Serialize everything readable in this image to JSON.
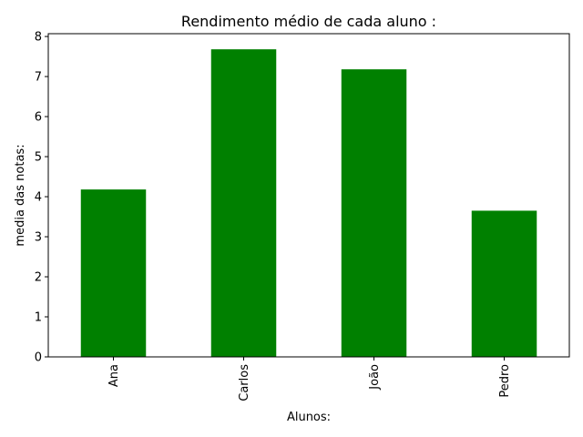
{
  "chart_data": {
    "type": "bar",
    "title": "Rendimento médio de cada aluno :",
    "xlabel": "Alunos:",
    "ylabel": "media das notas:",
    "categories": [
      "Ana",
      "Carlos",
      "João",
      "Pedro"
    ],
    "values": [
      4.18,
      7.68,
      7.18,
      3.65
    ],
    "ylim": [
      0,
      8.07
    ],
    "yticks": [
      "0",
      "1",
      "2",
      "3",
      "4",
      "5",
      "6",
      "7",
      "8"
    ],
    "bar_color": "#008000",
    "grid": false,
    "legend": "none"
  }
}
